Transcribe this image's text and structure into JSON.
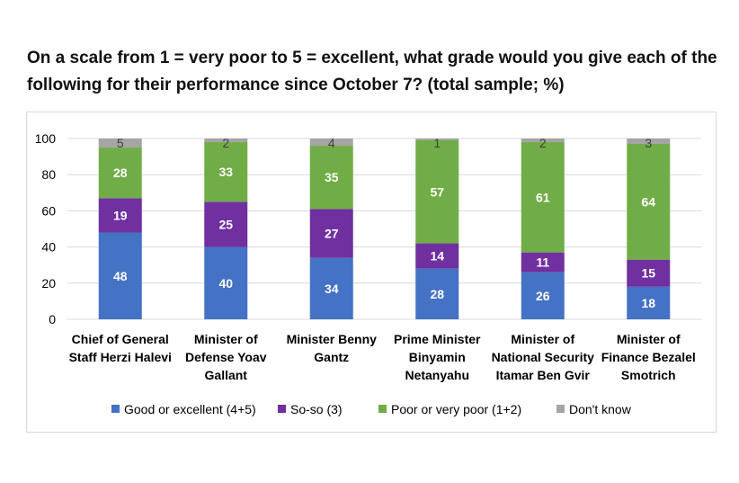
{
  "title": "On a scale from 1 = very poor to 5 = excellent, what grade would you give each of the following for their performance since October 7? (total sample; %)",
  "chart_data": {
    "type": "bar",
    "stacked": true,
    "title": "On a scale from 1 = very poor to 5 = excellent, what grade would you give each of the following for their performance since October 7? (total sample; %)",
    "categories": [
      [
        "Chief of General",
        "Staff Herzi Halevi"
      ],
      [
        "Minister of",
        "Defense Yoav",
        "Gallant"
      ],
      [
        "Minister Benny",
        "Gantz"
      ],
      [
        "Prime Minister",
        "Binyamin",
        "Netanyahu"
      ],
      [
        "Minister of",
        "National Security",
        "Itamar Ben Gvir"
      ],
      [
        "Minister of",
        "Finance Bezalel",
        "Smotrich"
      ]
    ],
    "series": [
      {
        "name": "Good or excellent (4+5)",
        "color": "#4472c4",
        "values": [
          48,
          40,
          34,
          28,
          26,
          18
        ]
      },
      {
        "name": "So-so (3)",
        "color": "#7030a0",
        "values": [
          19,
          25,
          27,
          14,
          11,
          15
        ]
      },
      {
        "name": "Poor or very poor (1+2)",
        "color": "#70ad47",
        "values": [
          28,
          33,
          35,
          57,
          61,
          64
        ]
      },
      {
        "name": "Don't know",
        "color": "#a5a5a5",
        "values": [
          5,
          2,
          4,
          1,
          2,
          3
        ]
      }
    ],
    "yticks": [
      0,
      20,
      40,
      60,
      80,
      100
    ],
    "ylim": [
      0,
      100
    ],
    "grid": true,
    "legend_position": "bottom"
  }
}
